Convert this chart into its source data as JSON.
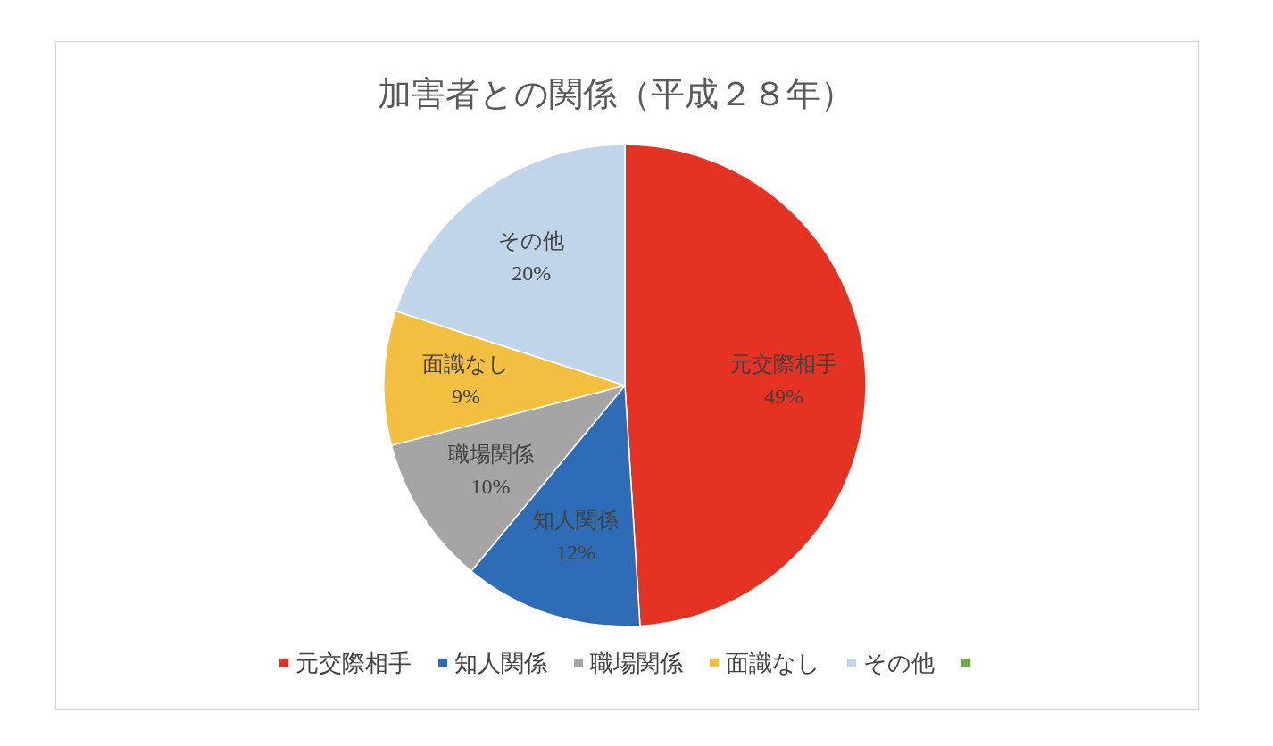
{
  "chart_data": {
    "type": "pie",
    "title": "加害者との関係（平成２８年）",
    "categories": [
      "元交際相手",
      "知人関係",
      "職場関係",
      "面識なし",
      "その他",
      null
    ],
    "values": [
      49,
      12,
      10,
      9,
      20,
      0
    ],
    "colors": [
      "#e53323",
      "#2e6db5",
      "#a5a5a5",
      "#f2bf40",
      "#c0d4ea",
      "#70ad47"
    ],
    "value_labels": [
      "49%",
      "12%",
      "10%",
      "9%",
      "20%",
      null
    ],
    "legend": "bottom"
  }
}
